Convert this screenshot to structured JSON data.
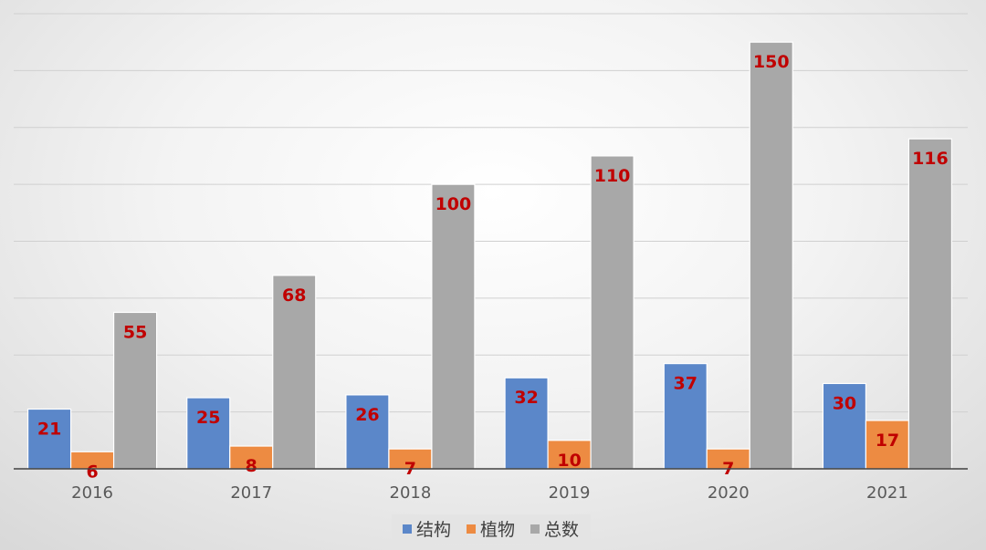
{
  "chart_data": {
    "type": "bar",
    "categories": [
      "2016",
      "2017",
      "2018",
      "2019",
      "2020",
      "2021"
    ],
    "series": [
      {
        "name": "结构",
        "values": [
          21,
          25,
          26,
          32,
          37,
          30
        ],
        "color": "#5b87c9"
      },
      {
        "name": "植物",
        "values": [
          6,
          8,
          7,
          10,
          7,
          17
        ],
        "color": "#ed8b42"
      },
      {
        "name": "总数",
        "values": [
          55,
          68,
          100,
          110,
          150,
          116
        ],
        "color": "#a8a8a8"
      }
    ],
    "ylim": [
      0,
      160
    ],
    "grid": true,
    "data_label_color": "#c00000",
    "legend_position": "bottom"
  }
}
